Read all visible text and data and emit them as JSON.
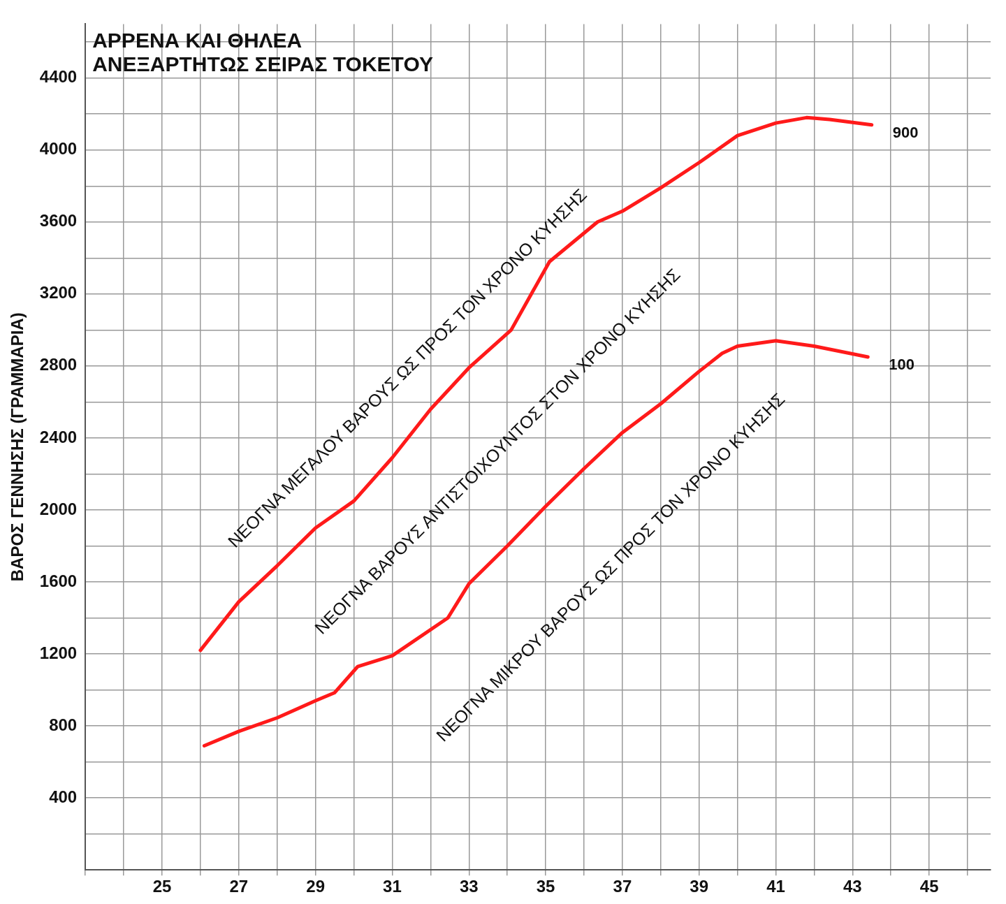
{
  "chart_data": {
    "type": "line",
    "title": "ΑΡΡΕΝΑ ΚΑΙ ΘΗΛΕΑ\nΑΝΕΞΑΡΤΗΤΩΣ ΣΕΙΡΑΣ ΤΟΚΕΤΟΥ",
    "ylabel": "ΒΑΡΟΣ ΓΕΝΝΗΣΗΣ (ΓΡΑΜΜΑΡΙΑ)",
    "xlim": [
      23,
      46.6
    ],
    "xticks": [
      {
        "value": 23,
        "label": null
      },
      {
        "value": 24,
        "label": null
      },
      25,
      {
        "value": 26,
        "label": null
      },
      27,
      {
        "value": 28,
        "label": null
      },
      29,
      {
        "value": 30,
        "label": null
      },
      31,
      {
        "value": 32,
        "label": null
      },
      33,
      {
        "value": 34,
        "label": null
      },
      35,
      {
        "value": 36,
        "label": null
      },
      37,
      {
        "value": 38,
        "label": null
      },
      39,
      {
        "value": 40,
        "label": null
      },
      41,
      {
        "value": 42,
        "label": null
      },
      43,
      {
        "value": 44,
        "label": null
      },
      45,
      {
        "value": 46,
        "label": null
      }
    ],
    "ylim": [
      0,
      4700
    ],
    "yticks": [
      {
        "value": 0,
        "label": null
      },
      {
        "value": 200,
        "label": null
      },
      400,
      {
        "value": 600,
        "label": null
      },
      800,
      {
        "value": 1000,
        "label": null
      },
      1200,
      {
        "value": 1400,
        "label": null
      },
      1600,
      {
        "value": 1800,
        "label": null
      },
      2000,
      {
        "value": 2200,
        "label": null
      },
      2400,
      {
        "value": 2600,
        "label": null
      },
      2800,
      {
        "value": 3000,
        "label": null
      },
      3200,
      {
        "value": 3400,
        "label": null
      },
      3600,
      {
        "value": 3800,
        "label": null
      },
      4000,
      {
        "value": 4200,
        "label": null
      },
      4400,
      {
        "value": 4600,
        "label": null
      }
    ],
    "grid": true,
    "legend": false,
    "marker": "none",
    "line_style": "solid",
    "series": [
      {
        "name": "900",
        "color": "#ff1a1a",
        "x": [
          26,
          27,
          28,
          29,
          30,
          31,
          32,
          33,
          34.1,
          35.1,
          36.35,
          37,
          38,
          39,
          40,
          41,
          41.8,
          42.4,
          43.5
        ],
        "values": [
          1220,
          1490,
          1690,
          1900,
          2050,
          2290,
          2560,
          2790,
          3000,
          3380,
          3600,
          3660,
          3790,
          3930,
          4080,
          4150,
          4180,
          4170,
          4140
        ]
      },
      {
        "name": "100",
        "color": "#ff1a1a",
        "x": [
          26.1,
          27,
          28,
          29,
          29.5,
          30.1,
          31,
          32.45,
          33,
          34,
          35,
          36,
          37,
          38,
          39,
          39.6,
          40,
          41,
          42,
          43.4
        ],
        "values": [
          690,
          770,
          845,
          940,
          985,
          1130,
          1190,
          1400,
          1590,
          1800,
          2020,
          2230,
          2430,
          2590,
          2770,
          2870,
          2910,
          2940,
          2910,
          2850
        ]
      }
    ],
    "annotations": [
      "ΝΕΟΓΝΑ ΜΕΓΑΛΟΥ ΒΑΡΟΥΣ ΩΣ ΠΡΟΣ ΤΟΝ ΧΡΟΝΟ ΚΥΗΣΗΣ",
      "ΝΕΟΓΝΑ ΒΑΡΟΥΣ ΑΝΤΙΣΤΟΙΧΟΥΝΤΟΣ ΣΤΟΝ ΧΡΟΝΟ ΚΥΗΣΗΣ",
      "ΝΕΟΓΝΑ ΜΙΚΡΟΥ ΒΑΡΟΥΣ ΩΣ ΠΡΟΣ ΤΟΝ ΧΡΟΝΟ ΚΥΗΣΗΣ"
    ]
  }
}
